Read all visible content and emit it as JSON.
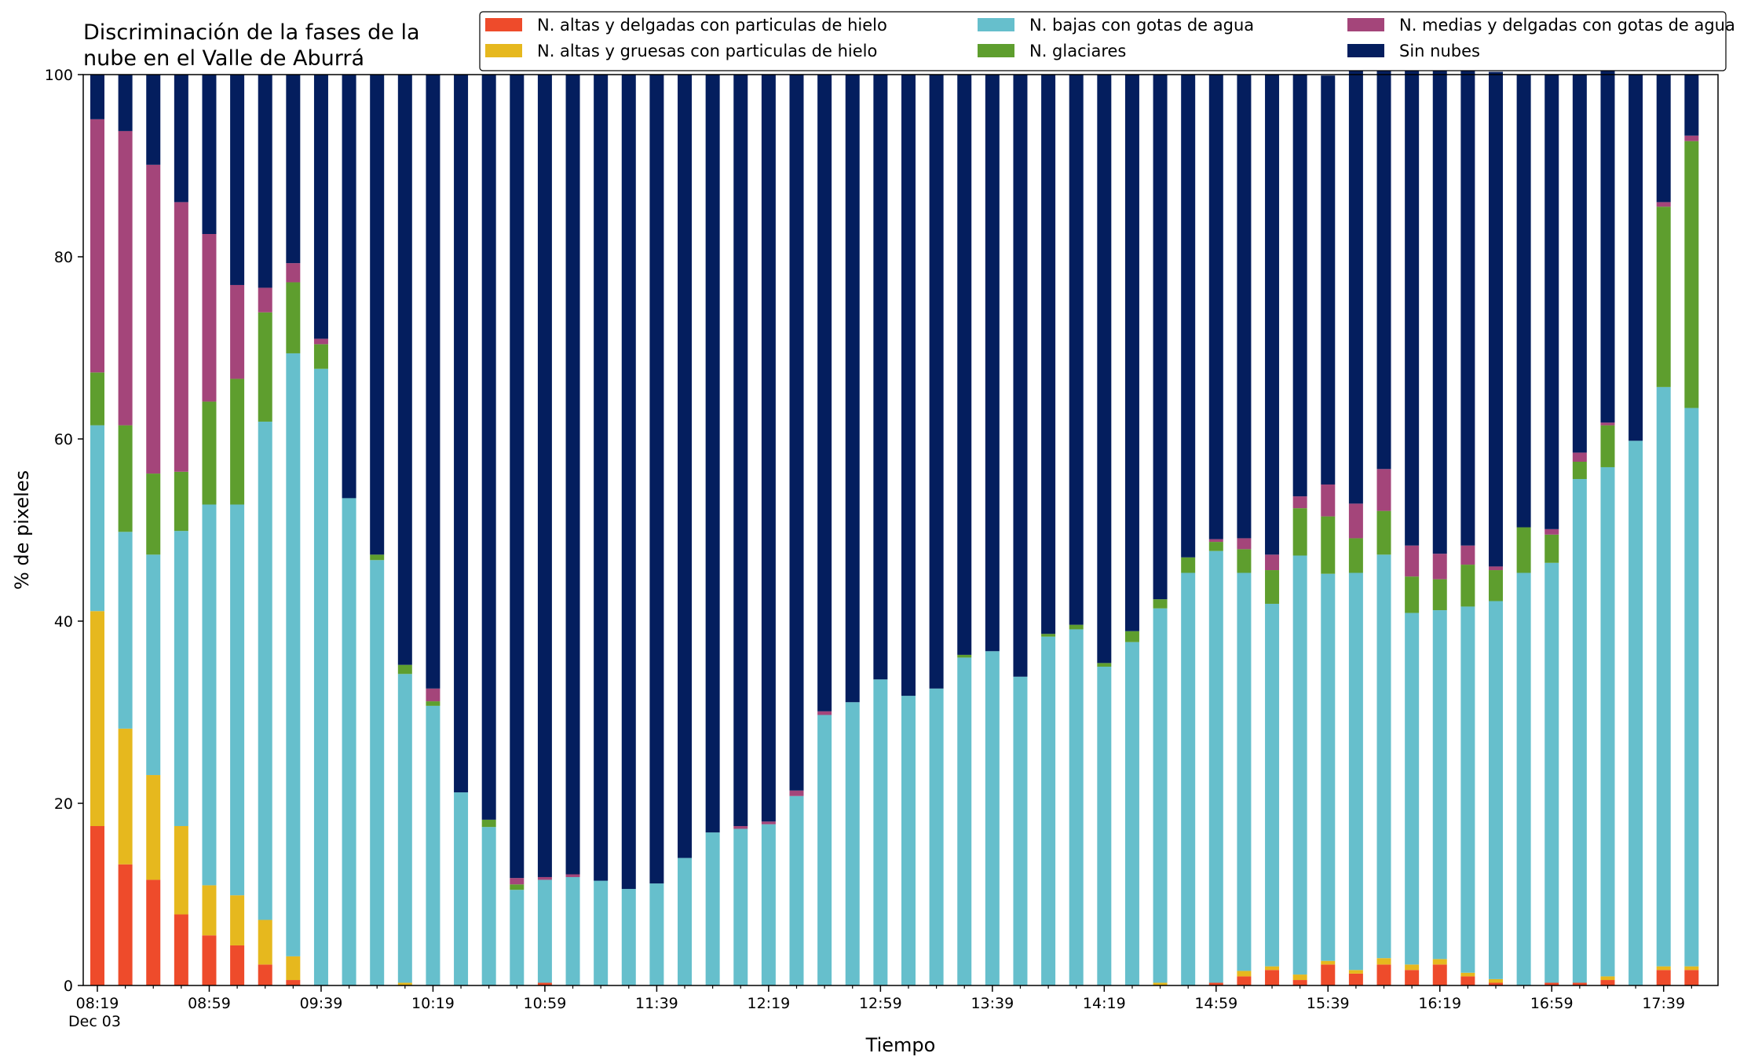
{
  "chart_data": {
    "type": "bar",
    "stacked": true,
    "title_lines": [
      "Discriminación de la fases de la",
      "nube en el Valle de Aburrá"
    ],
    "xlabel": "Tiempo",
    "ylabel": "% de pixeles",
    "ylim": [
      0,
      100
    ],
    "y_ticks": [
      0,
      20,
      40,
      60,
      80,
      100
    ],
    "x_date_label": "Dec 03",
    "legend_position": "top-right",
    "grid": false,
    "x_ticks": [
      {
        "index": 0,
        "label": "08:19"
      },
      {
        "index": 4,
        "label": "08:59"
      },
      {
        "index": 8,
        "label": "09:39"
      },
      {
        "index": 12,
        "label": "10:19"
      },
      {
        "index": 16,
        "label": "10:59"
      },
      {
        "index": 20,
        "label": "11:39"
      },
      {
        "index": 24,
        "label": "12:19"
      },
      {
        "index": 28,
        "label": "12:59"
      },
      {
        "index": 32,
        "label": "13:39"
      },
      {
        "index": 36,
        "label": "14:19"
      },
      {
        "index": 40,
        "label": "14:59"
      },
      {
        "index": 44,
        "label": "15:39"
      },
      {
        "index": 48,
        "label": "16:19"
      },
      {
        "index": 52,
        "label": "16:59"
      },
      {
        "index": 56,
        "label": "17:39"
      }
    ],
    "legend": [
      {
        "name": "N. altas y delgadas con particulas de hielo",
        "color": "#ee4b2b",
        "series": 0
      },
      {
        "name": "N. altas y gruesas con particulas de hielo",
        "color": "#e6b81e",
        "series": 1
      },
      {
        "name": "N. bajas con gotas de agua",
        "color": "#66bfcc",
        "series": 2
      },
      {
        "name": "N. glaciares",
        "color": "#5e9e2e",
        "series": 3
      },
      {
        "name": "N. medias y delgadas con gotas de agua",
        "color": "#a4457a",
        "series": 4
      },
      {
        "name": "Sin nubes",
        "color": "#041e5e",
        "series": 5
      }
    ],
    "series": [
      {
        "name": "N. altas y delgadas con particulas de hielo",
        "color": "#ee4b2b",
        "values": [
          17.5,
          13.3,
          11.6,
          7.8,
          5.5,
          4.4,
          2.3,
          0.6,
          0,
          0,
          0,
          0,
          0,
          0,
          0,
          0,
          0.3,
          0,
          0,
          0,
          0,
          0,
          0,
          0,
          0,
          0,
          0,
          0,
          0,
          0,
          0,
          0,
          0,
          0,
          0,
          0,
          0,
          0,
          0,
          0,
          0.3,
          1.0,
          1.7,
          0.6,
          2.3,
          1.3,
          2.3,
          1.7,
          2.3,
          1.0,
          0.3,
          0,
          0.3,
          0.3,
          0.6,
          0,
          1.7,
          1.7
        ]
      },
      {
        "name": "N. altas y gruesas con particulas de hielo",
        "color": "#e6b81e",
        "values": [
          23.6,
          14.9,
          11.5,
          9.7,
          5.5,
          5.5,
          4.9,
          2.6,
          0,
          0,
          0,
          0.3,
          0,
          0,
          0,
          0,
          0,
          0,
          0,
          0,
          0,
          0,
          0,
          0,
          0,
          0,
          0,
          0,
          0,
          0,
          0,
          0,
          0,
          0,
          0,
          0,
          0,
          0,
          0.3,
          0,
          0,
          0.6,
          0.4,
          0.6,
          0.4,
          0.4,
          0.7,
          0.6,
          0.6,
          0.4,
          0.4,
          0,
          0,
          0,
          0.4,
          0,
          0.4,
          0.4
        ]
      },
      {
        "name": "N. bajas con gotas de agua",
        "color": "#66bfcc",
        "values": [
          20.4,
          21.6,
          24.2,
          32.4,
          41.8,
          42.9,
          54.7,
          66.2,
          67.7,
          53.5,
          46.7,
          33.9,
          30.7,
          21.2,
          17.4,
          10.5,
          11.3,
          11.9,
          11.5,
          10.6,
          11.2,
          14.0,
          16.8,
          17.2,
          17.7,
          20.8,
          29.7,
          31.1,
          33.6,
          31.8,
          32.6,
          36.0,
          36.7,
          33.9,
          38.3,
          39.1,
          35.0,
          37.7,
          41.1,
          45.3,
          47.4,
          43.7,
          39.8,
          46.0,
          42.5,
          43.6,
          44.3,
          38.6,
          38.3,
          40.2,
          41.5,
          45.3,
          46.1,
          55.3,
          55.9,
          59.8,
          63.6,
          61.3
        ]
      },
      {
        "name": "N. glaciares",
        "color": "#5e9e2e",
        "values": [
          5.8,
          11.7,
          8.9,
          6.5,
          11.3,
          13.8,
          12.0,
          7.8,
          2.7,
          0,
          0.6,
          1.0,
          0.5,
          0,
          0.8,
          0.6,
          0,
          0,
          0,
          0,
          0,
          0,
          0,
          0,
          0,
          0,
          0,
          0,
          0,
          0,
          0,
          0.3,
          0,
          0,
          0.3,
          0.5,
          0.4,
          1.2,
          1.0,
          1.7,
          1.0,
          2.6,
          3.7,
          5.2,
          6.3,
          3.8,
          4.8,
          4.0,
          3.4,
          4.6,
          3.4,
          5.0,
          3.1,
          1.9,
          4.6,
          0,
          19.8,
          29.3
        ]
      },
      {
        "name": "N. medias y delgadas con gotas de agua",
        "color": "#a4457a",
        "values": [
          27.8,
          32.3,
          33.9,
          29.6,
          18.4,
          10.3,
          2.7,
          2.1,
          0.6,
          0,
          0,
          0,
          1.4,
          0,
          0,
          0.7,
          0.3,
          0.3,
          0,
          0,
          0,
          0,
          0,
          0.3,
          0.3,
          0.6,
          0.4,
          0,
          0,
          0,
          0,
          0,
          0,
          0,
          0,
          0,
          0,
          0,
          0,
          0,
          0.3,
          1.2,
          1.7,
          1.3,
          3.5,
          3.8,
          4.6,
          3.4,
          2.8,
          2.1,
          0.4,
          0,
          0.6,
          1.0,
          0.3,
          0,
          0.5,
          0.6
        ]
      },
      {
        "name": "Sin nubes",
        "color": "#041e5e",
        "values": [
          4.9,
          6.2,
          9.9,
          14.0,
          17.5,
          23.1,
          23.4,
          20.7,
          29.0,
          46.5,
          52.7,
          64.8,
          67.4,
          78.8,
          81.8,
          88.2,
          88.1,
          87.8,
          88.5,
          89.4,
          88.8,
          86.0,
          83.2,
          82.5,
          82.0,
          78.6,
          69.9,
          68.9,
          66.4,
          68.2,
          67.4,
          63.7,
          63.3,
          66.1,
          61.4,
          60.4,
          64.6,
          61.1,
          57.6,
          53.0,
          51.0,
          50.9,
          52.7,
          46.3,
          44.9,
          48.9,
          44.3,
          52.3,
          53.3,
          53.2,
          54.3,
          49.7,
          49.9,
          41.5,
          38.8,
          40.2,
          14.0,
          6.7
        ]
      }
    ]
  }
}
